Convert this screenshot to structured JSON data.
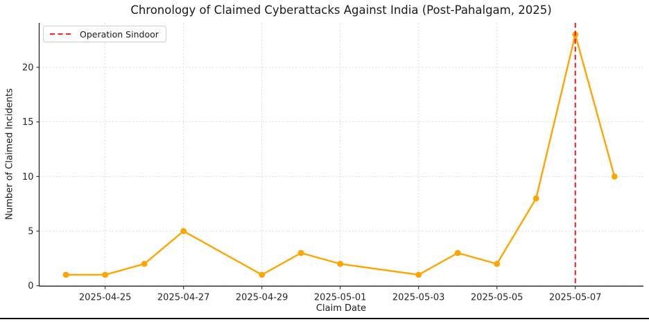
{
  "figure": {
    "title": "Chronology of Claimed Cyberattacks Against India (Post-Pahalgam, 2025)",
    "xlabel": "Claim Date",
    "ylabel": "Number of Claimed Incidents",
    "legend": {
      "label": "Operation Sindoor"
    }
  },
  "colors": {
    "series": "#FFA500",
    "event_line": "#FF0000",
    "grid": "#d9d9d9",
    "axis": "#262626",
    "text": "#262626"
  },
  "chart_data": {
    "type": "line",
    "title": "Chronology of Claimed Cyberattacks Against India (Post-Pahalgam, 2025)",
    "xlabel": "Claim Date",
    "ylabel": "Number of Claimed Incidents",
    "x": [
      "2025-04-24",
      "2025-04-25",
      "2025-04-26",
      "2025-04-27",
      "2025-04-29",
      "2025-04-30",
      "2025-05-01",
      "2025-05-03",
      "2025-05-04",
      "2025-05-05",
      "2025-05-06",
      "2025-05-07",
      "2025-05-08"
    ],
    "values": [
      1,
      1,
      2,
      5,
      1,
      3,
      2,
      1,
      3,
      2,
      8,
      23,
      10
    ],
    "marker": "circle",
    "line_color": "#FFA500",
    "x_tick_labels": [
      "2025-04-25",
      "2025-04-27",
      "2025-04-29",
      "2025-05-01",
      "2025-05-03",
      "2025-05-05",
      "2025-05-07"
    ],
    "y_ticks": [
      0,
      5,
      10,
      15,
      20
    ],
    "ylim": [
      0,
      24.1
    ],
    "grid": true,
    "grid_style": "dashed",
    "legend_position": "upper left",
    "annotations": [
      {
        "type": "vline",
        "x": "2025-05-07",
        "label": "Operation Sindoor",
        "color": "#FF0000",
        "linestyle": "dashed"
      }
    ]
  }
}
